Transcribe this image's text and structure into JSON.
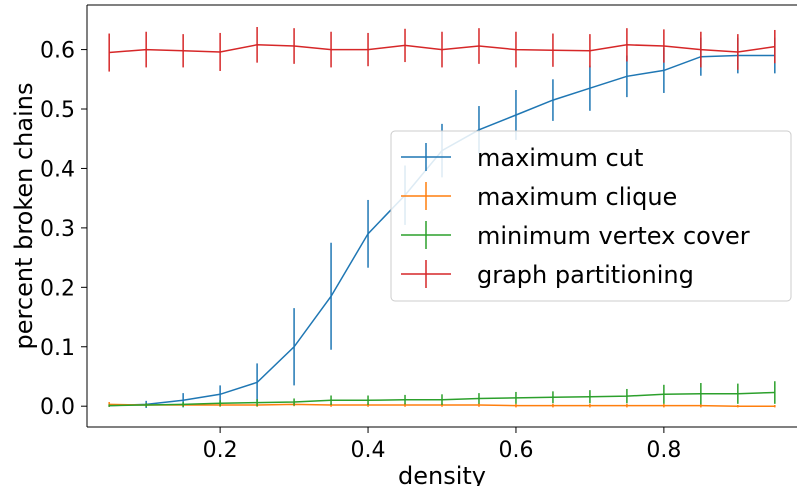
{
  "chart_data": {
    "type": "line",
    "title": "",
    "xlabel": "density",
    "ylabel": "percent broken chains",
    "xlim": [
      0.02,
      0.98
    ],
    "ylim": [
      -0.035,
      0.675
    ],
    "xticks": [
      0.2,
      0.4,
      0.6,
      0.8
    ],
    "xtick_labels": [
      "0.2",
      "0.4",
      "0.6",
      "0.8"
    ],
    "yticks": [
      0.0,
      0.1,
      0.2,
      0.3,
      0.4,
      0.5,
      0.6
    ],
    "ytick_labels": [
      "0.0",
      "0.1",
      "0.2",
      "0.3",
      "0.4",
      "0.5",
      "0.6"
    ],
    "grid": false,
    "legend_position": "center-right",
    "x": [
      0.05,
      0.1,
      0.15,
      0.2,
      0.25,
      0.3,
      0.35,
      0.4,
      0.45,
      0.5,
      0.55,
      0.6,
      0.65,
      0.7,
      0.75,
      0.8,
      0.85,
      0.9,
      0.95
    ],
    "series": [
      {
        "name": "maximum cut",
        "color": "#1f77b4",
        "values": [
          0.001,
          0.003,
          0.01,
          0.02,
          0.04,
          0.1,
          0.185,
          0.29,
          0.355,
          0.43,
          0.465,
          0.49,
          0.515,
          0.535,
          0.555,
          0.565,
          0.588,
          0.59,
          0.59
        ],
        "errors": [
          0.002,
          0.006,
          0.012,
          0.015,
          0.032,
          0.065,
          0.09,
          0.057,
          0.05,
          0.045,
          0.04,
          0.042,
          0.035,
          0.038,
          0.035,
          0.038,
          0.032,
          0.03,
          0.03
        ]
      },
      {
        "name": "maximum clique",
        "color": "#ff7f0e",
        "values": [
          0.003,
          0.002,
          0.002,
          0.002,
          0.002,
          0.003,
          0.002,
          0.002,
          0.002,
          0.002,
          0.002,
          0.001,
          0.001,
          0.001,
          0.001,
          0.001,
          0.001,
          0.0,
          0.0
        ],
        "errors": [
          0.004,
          0.003,
          0.003,
          0.003,
          0.003,
          0.003,
          0.003,
          0.003,
          0.003,
          0.003,
          0.003,
          0.003,
          0.003,
          0.003,
          0.003,
          0.003,
          0.003,
          0.002,
          0.002
        ]
      },
      {
        "name": "minimum vertex cover",
        "color": "#2ca02c",
        "values": [
          0.001,
          0.002,
          0.003,
          0.005,
          0.006,
          0.007,
          0.01,
          0.01,
          0.011,
          0.011,
          0.013,
          0.014,
          0.015,
          0.016,
          0.017,
          0.02,
          0.021,
          0.021,
          0.023
        ],
        "errors": [
          0.002,
          0.003,
          0.004,
          0.005,
          0.006,
          0.006,
          0.008,
          0.008,
          0.008,
          0.009,
          0.009,
          0.01,
          0.01,
          0.011,
          0.012,
          0.016,
          0.018,
          0.017,
          0.019
        ]
      },
      {
        "name": "graph partitioning",
        "color": "#d62728",
        "values": [
          0.595,
          0.6,
          0.598,
          0.596,
          0.608,
          0.606,
          0.6,
          0.6,
          0.607,
          0.6,
          0.606,
          0.6,
          0.599,
          0.598,
          0.608,
          0.606,
          0.6,
          0.596,
          0.605
        ],
        "errors": [
          0.032,
          0.03,
          0.028,
          0.032,
          0.03,
          0.03,
          0.03,
          0.028,
          0.028,
          0.03,
          0.03,
          0.03,
          0.028,
          0.028,
          0.028,
          0.028,
          0.03,
          0.03,
          0.028
        ]
      }
    ]
  }
}
